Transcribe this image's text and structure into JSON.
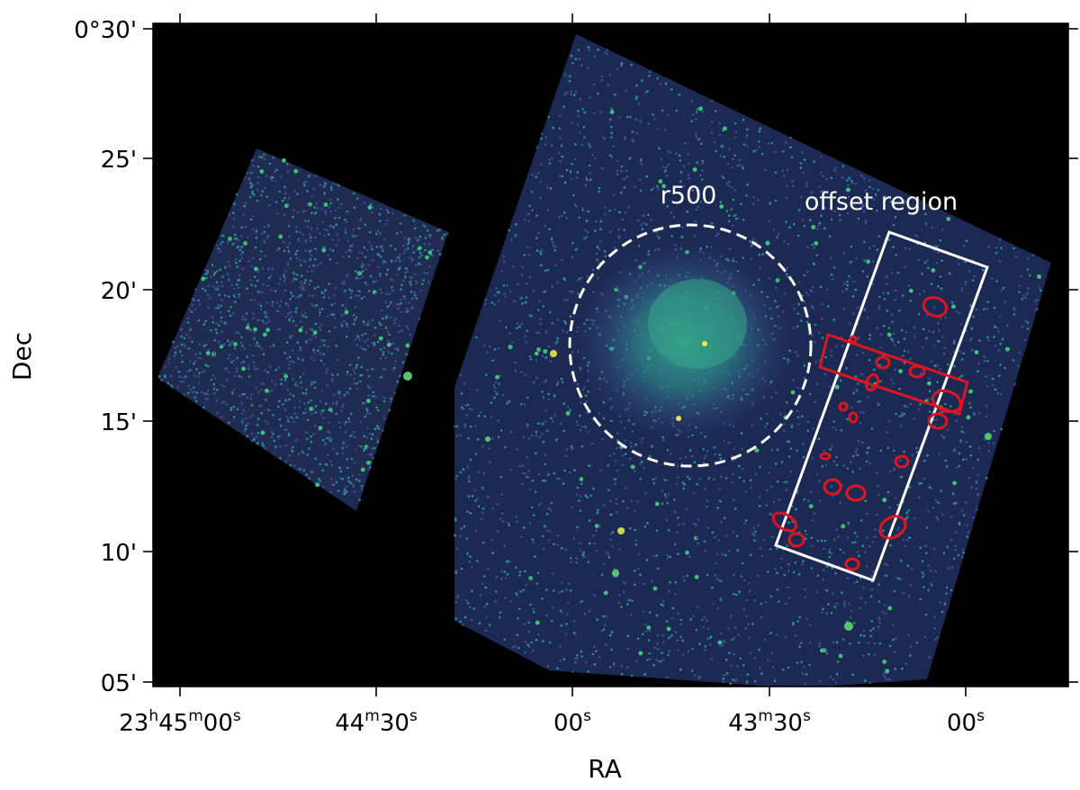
{
  "figure": {
    "x_axis_label": "RA",
    "y_axis_label": "Dec",
    "x_ticks": [
      {
        "h": "23",
        "m": "45",
        "s": "00",
        "kind": "hms"
      },
      {
        "m": "44",
        "s": "30",
        "kind": "ms"
      },
      {
        "s": "00",
        "kind": "s"
      },
      {
        "m": "43",
        "s": "30",
        "kind": "ms"
      },
      {
        "s": "00",
        "kind": "s"
      }
    ],
    "y_ticks": [
      "0°30'",
      "25'",
      "20'",
      "15'",
      "10'",
      "05'"
    ],
    "annotations": {
      "r500_label": "r500",
      "offset_label": "offset region"
    },
    "colors": {
      "background": "#000000",
      "counts_low": "#3b4e8f",
      "counts_mid": "#2e8b8f",
      "counts_high": "#3ec07a",
      "peak": "#f0e442",
      "r500_circle": "#ffffff",
      "offset_region": "#ffffff",
      "excluded_sources": "#e0141e"
    }
  }
}
